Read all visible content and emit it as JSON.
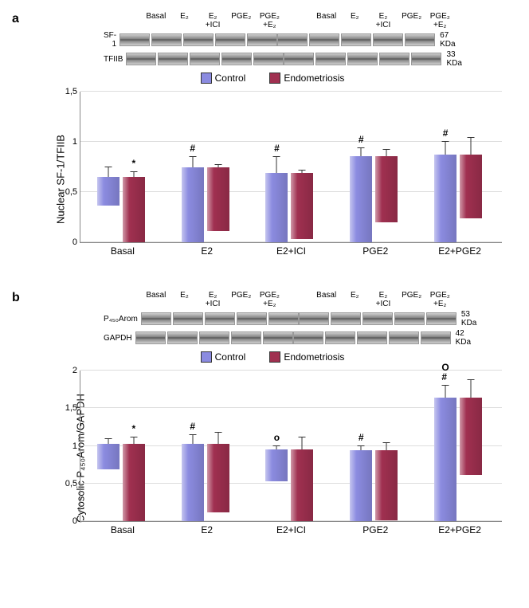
{
  "colors": {
    "control": "#8b8be0",
    "endometriosis": "#a03050",
    "background": "#ffffff",
    "axis": "#888888",
    "grid": "#dddddd"
  },
  "legend": {
    "control": "Control",
    "endometriosis": "Endometriosis"
  },
  "blot_conditions": [
    "Basal",
    "E₂",
    "E₂\n+ICI",
    "PGE₂",
    "PGE₂\n+E₂"
  ],
  "panel_a": {
    "label": "a",
    "blot_rows": [
      {
        "name": "SF-1",
        "mw": "67 KDa"
      },
      {
        "name": "TFIIB",
        "mw": "33 KDa"
      }
    ],
    "ylabel": "Nuclear SF-1/TFIIB",
    "ylim": [
      0,
      1.5
    ],
    "yticks": [
      0,
      0.5,
      1,
      1.5
    ],
    "ytick_labels": [
      "0",
      "0,5",
      "1",
      "1,5"
    ],
    "categories": [
      "Basal",
      "E2",
      "E2+ICI",
      "PGE2",
      "E2+PGE2"
    ],
    "control": {
      "values": [
        0.29,
        0.74,
        0.69,
        0.85,
        0.87
      ],
      "errors": [
        0.1,
        0.11,
        0.16,
        0.09,
        0.13
      ],
      "sig": [
        "",
        "#",
        "#",
        "#",
        "#"
      ]
    },
    "endometriosis": {
      "values": [
        0.65,
        0.63,
        0.66,
        0.65,
        0.63
      ],
      "errors": [
        0.05,
        0.03,
        0.03,
        0.07,
        0.17
      ],
      "sig": [
        "*",
        "",
        "",
        "",
        ""
      ]
    }
  },
  "panel_b": {
    "label": "b",
    "blot_rows": [
      {
        "name": "P₄₅₀Arom",
        "mw": "53 KDa"
      },
      {
        "name": "GAPDH",
        "mw": "42 KDa"
      }
    ],
    "ylabel": "Cytosolic P₄₅₀Arom/GAPDH",
    "ylim": [
      0,
      2
    ],
    "yticks": [
      0,
      0.5,
      1,
      1.5,
      2
    ],
    "ytick_labels": [
      "0",
      "0,5",
      "1",
      "1,5",
      "2"
    ],
    "categories": [
      "Basal",
      "E2",
      "E2+ICI",
      "PGE2",
      "E2+PGE2"
    ],
    "control": {
      "values": [
        0.34,
        1.02,
        0.42,
        0.94,
        1.63
      ],
      "errors": [
        0.08,
        0.13,
        0.05,
        0.06,
        0.17
      ],
      "sig": [
        "",
        "#",
        "o",
        "#",
        "O\n#"
      ]
    },
    "endometriosis": {
      "values": [
        1.02,
        0.9,
        0.95,
        0.93,
        1.02
      ],
      "errors": [
        0.1,
        0.16,
        0.17,
        0.1,
        0.24
      ],
      "sig": [
        "*",
        "",
        "",
        "",
        ""
      ]
    }
  }
}
